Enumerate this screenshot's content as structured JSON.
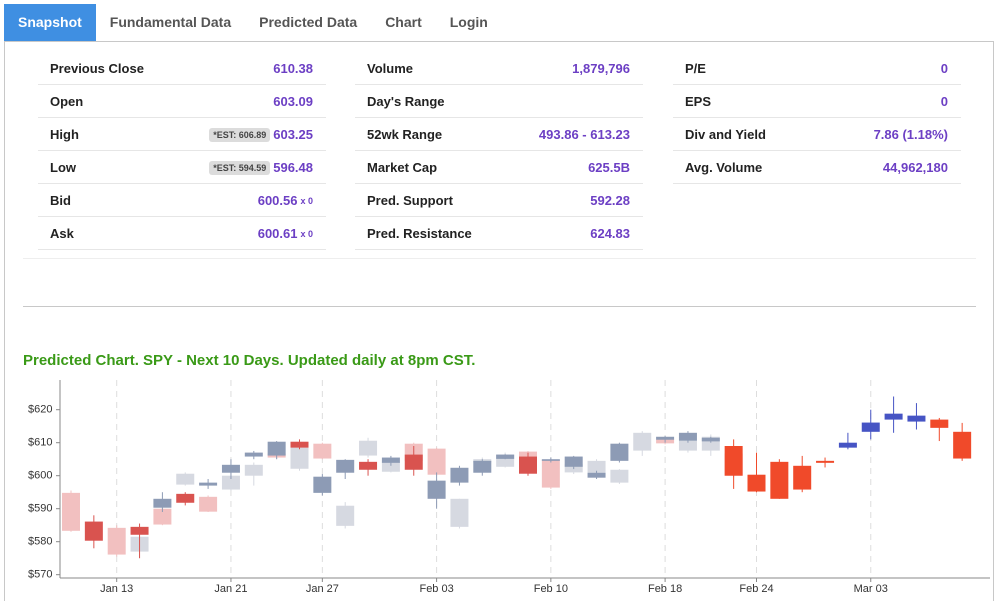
{
  "tabs": [
    "Snapshot",
    "Fundamental Data",
    "Predicted Data",
    "Chart",
    "Login"
  ],
  "active_tab": 0,
  "stats": [
    [
      {
        "label": "Previous Close",
        "value": "610.38"
      },
      {
        "label": "Open",
        "value": "603.09"
      },
      {
        "label": "High",
        "value": "603.25",
        "est": "*EST: 606.89"
      },
      {
        "label": "Low",
        "value": "596.48",
        "est": "*EST: 594.59"
      },
      {
        "label": "Bid",
        "value": "600.56",
        "suffix": "x 0"
      },
      {
        "label": "Ask",
        "value": "600.61",
        "suffix": "x 0"
      }
    ],
    [
      {
        "label": "Volume",
        "value": "1,879,796"
      },
      {
        "label": "Day's Range"
      },
      {
        "label": "52wk Range",
        "value": "493.86 - 613.23"
      },
      {
        "label": "Market Cap",
        "value": "625.5B"
      },
      {
        "label": "Pred. Support",
        "value": "592.28"
      },
      {
        "label": "Pred. Resistance",
        "value": "624.83"
      }
    ],
    [
      {
        "label": "P/E",
        "value": "0"
      },
      {
        "label": "EPS",
        "value": "0"
      },
      {
        "label": "Div and Yield",
        "value": "7.86 (1.18%)"
      },
      {
        "label": "Avg. Volume",
        "value": "44,962,180"
      }
    ]
  ],
  "chart": {
    "type": "candlestick",
    "title": "Predicted Chart. SPY - Next 10 Days. Updated daily at 8pm CST.",
    "categories": [
      null,
      null,
      "Jan 13",
      null,
      null,
      null,
      null,
      "Jan 21",
      null,
      null,
      null,
      "Jan 27",
      null,
      null,
      null,
      null,
      "Feb 03",
      null,
      null,
      null,
      null,
      "Feb 10",
      null,
      null,
      null,
      null,
      "Feb 18",
      null,
      null,
      null,
      "Feb 24",
      null,
      null,
      null,
      null,
      "Mar 03",
      null,
      null,
      null,
      null
    ],
    "ylim": [
      569,
      629
    ],
    "yticks": [
      {
        "value": 570,
        "label": "$570"
      },
      {
        "value": 580,
        "label": "$580"
      },
      {
        "value": 590,
        "label": "$590"
      },
      {
        "value": 600,
        "label": "$600"
      },
      {
        "value": 610,
        "label": "$610"
      },
      {
        "value": 620,
        "label": "$620"
      }
    ],
    "xgrid": true,
    "series": [
      {
        "open": [
          null,
          586.1,
          null,
          584.5,
          590.3,
          594.5,
          597.0,
          600.9,
          605.8,
          606.1,
          610.3,
          599.7,
          600.9,
          604.2,
          603.9,
          606.4,
          598.5,
          597.9,
          600.9,
          605.1,
          605.8,
          604.5,
          602.7,
          600.9,
          604.5,
          null,
          610.9,
          610.6,
          610.4,
          609.0,
          600.3,
          604.2,
          603.0,
          604.5,
          608.5,
          613.3,
          617.0,
          616.4,
          617.0,
          613.3
        ],
        "high": [
          null,
          588.0,
          null,
          585.5,
          595.0,
          595.0,
          599.0,
          605.0,
          607.5,
          610.5,
          611.0,
          600.5,
          605.0,
          605.0,
          606.0,
          609.0,
          601.0,
          603.0,
          605.0,
          606.5,
          607.0,
          605.5,
          606.0,
          601.5,
          610.0,
          null,
          612.0,
          613.5,
          611.8,
          611.0,
          607.0,
          605.0,
          606.0,
          605.5,
          613.0,
          620.0,
          624.0,
          622.0,
          617.5,
          616.0
        ],
        "low": [
          null,
          578.0,
          null,
          575.0,
          589.0,
          591.0,
          596.0,
          599.0,
          605.0,
          605.0,
          608.0,
          594.0,
          599.0,
          600.0,
          603.0,
          600.0,
          590.0,
          597.0,
          600.0,
          605.0,
          600.0,
          604.0,
          602.0,
          599.0,
          604.0,
          null,
          610.0,
          610.0,
          610.0,
          596.0,
          595.0,
          593.0,
          595.0,
          602.5,
          608.0,
          611.0,
          613.0,
          614.0,
          610.5,
          604.5
        ],
        "close": [
          null,
          580.3,
          null,
          582.1,
          593.0,
          591.8,
          597.9,
          603.3,
          607.0,
          610.3,
          608.5,
          594.8,
          604.8,
          601.8,
          605.5,
          601.8,
          593.0,
          602.4,
          604.5,
          606.4,
          600.6,
          605.0,
          605.8,
          599.4,
          609.7,
          null,
          611.8,
          613.0,
          611.5,
          600.0,
          595.2,
          593.0,
          595.8,
          603.9,
          610.0,
          616.1,
          618.8,
          618.2,
          614.5,
          605.2
        ],
        "colors": [
          null,
          "#d9534f",
          null,
          "#d9534f",
          "#8d9bb5",
          "#d9534f",
          "#8d9bb5",
          "#8d9bb5",
          "#8d9bb5",
          "#8d9bb5",
          "#d9534f",
          "#8d9bb5",
          "#8d9bb5",
          "#d9534f",
          "#8d9bb5",
          "#d9534f",
          "#8d9bb5",
          "#8d9bb5",
          "#8d9bb5",
          "#8d9bb5",
          "#d9534f",
          "#8d9bb5",
          "#8d9bb5",
          "#8d9bb5",
          "#8d9bb5",
          null,
          "#8d9bb5",
          "#8d9bb5",
          "#8d9bb5",
          "#f04a2a",
          "#f04a2a",
          "#f04a2a",
          "#f04a2a",
          "#f04a2a",
          "#4654c4",
          "#4654c4",
          "#4654c4",
          "#4654c4",
          "#f04a2a",
          "#f04a2a"
        ]
      },
      {
        "open": [
          594.8,
          null,
          584.2,
          577.0,
          590.0,
          597.3,
          593.6,
          595.8,
          600.0,
          606.7,
          602.1,
          609.7,
          590.9,
          606.1,
          601.2,
          609.7,
          608.2,
          593.0,
          604.0,
          602.7,
          607.3,
          604.8,
          601.0,
          600.9,
          597.9,
          607.6,
          611.0,
          607.6,
          607.6,
          606.7,
          null,
          null,
          null,
          null,
          null,
          null,
          null,
          null,
          null,
          null
        ],
        "high": [
          595.5,
          null,
          585.0,
          582.0,
          591.0,
          601.0,
          594.0,
          600.5,
          604.0,
          607.0,
          609.0,
          610.0,
          592.0,
          611.5,
          604.5,
          610.0,
          608.5,
          593.0,
          605.5,
          607.0,
          607.5,
          605.0,
          604.0,
          605.0,
          602.0,
          613.5,
          611.5,
          611.0,
          612.5,
          607.0,
          null,
          null,
          null,
          null,
          null,
          null,
          null,
          null,
          null,
          null
        ],
        "low": [
          583.0,
          null,
          575.5,
          575.0,
          585.0,
          597.0,
          589.0,
          595.5,
          597.0,
          605.0,
          601.5,
          605.0,
          584.0,
          605.5,
          601.0,
          604.0,
          600.0,
          584.0,
          603.5,
          602.5,
          601.0,
          596.0,
          600.5,
          600.5,
          597.5,
          606.0,
          609.5,
          607.0,
          606.0,
          599.5,
          null,
          null,
          null,
          null,
          null,
          null,
          null,
          null,
          null,
          null
        ],
        "close": [
          583.3,
          null,
          576.1,
          581.5,
          585.2,
          600.6,
          589.1,
          600.0,
          603.3,
          605.5,
          608.5,
          605.2,
          584.8,
          610.6,
          604.2,
          604.5,
          600.3,
          584.5,
          605.0,
          606.4,
          601.5,
          596.4,
          603.5,
          604.5,
          601.8,
          613.0,
          609.8,
          610.6,
          611.8,
          600.0,
          null,
          null,
          null,
          null,
          null,
          null,
          null,
          null,
          null,
          null
        ],
        "colors": [
          "#f2c0c0",
          null,
          "#f2c0c0",
          "#d6d9e1",
          "#f2c0c0",
          "#d6d9e1",
          "#f2c0c0",
          "#d6d9e1",
          "#d6d9e1",
          "#f2c0c0",
          "#d6d9e1",
          "#f2c0c0",
          "#d6d9e1",
          "#d6d9e1",
          "#d6d9e1",
          "#f2c0c0",
          "#f2c0c0",
          "#d6d9e1",
          "#d6d9e1",
          "#d6d9e1",
          "#f2c0c0",
          "#f2c0c0",
          "#d6d9e1",
          "#d6d9e1",
          "#d6d9e1",
          "#d6d9e1",
          "#f2c0c0",
          "#d6d9e1",
          "#d6d9e1",
          "#f2c0c0",
          null,
          null,
          null,
          null,
          null,
          null,
          null,
          null,
          null,
          null
        ]
      }
    ]
  }
}
